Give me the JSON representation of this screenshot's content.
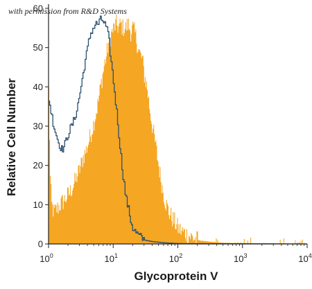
{
  "credit_text": "with permission from R&D Systems",
  "chart_data": {
    "type": "area",
    "xlabel": "Glycoprotein V",
    "ylabel": "Relative Cell Number",
    "x_scale": "log",
    "xlim": [
      1,
      10000
    ],
    "ylim": [
      0,
      60
    ],
    "x_ticks": [
      {
        "value": 1,
        "base": "10",
        "exp": "0"
      },
      {
        "value": 10,
        "base": "10",
        "exp": "1"
      },
      {
        "value": 100,
        "base": "10",
        "exp": "2"
      },
      {
        "value": 1000,
        "base": "10",
        "exp": "3"
      },
      {
        "value": 10000,
        "base": "10",
        "exp": "4"
      }
    ],
    "y_ticks": [
      0,
      10,
      20,
      30,
      40,
      50,
      60
    ],
    "grid": false,
    "legend": "none",
    "series": [
      {
        "style": "filled",
        "color": "#f5a623",
        "points": [
          [
            1.0,
            39
          ],
          [
            1.05,
            17
          ],
          [
            1.1,
            10
          ],
          [
            1.2,
            8
          ],
          [
            1.35,
            9
          ],
          [
            1.5,
            10
          ],
          [
            1.7,
            11
          ],
          [
            1.9,
            12
          ],
          [
            2.1,
            13
          ],
          [
            2.4,
            15
          ],
          [
            2.7,
            17
          ],
          [
            3.0,
            19
          ],
          [
            3.4,
            22
          ],
          [
            3.8,
            24
          ],
          [
            4.3,
            27
          ],
          [
            4.8,
            30
          ],
          [
            5.3,
            33
          ],
          [
            5.8,
            36
          ],
          [
            6.3,
            40
          ],
          [
            6.8,
            43
          ],
          [
            7.3,
            46
          ],
          [
            7.8,
            48
          ],
          [
            8.3,
            51
          ],
          [
            8.8,
            52
          ],
          [
            9.5,
            54
          ],
          [
            10.2,
            55
          ],
          [
            11.0,
            56
          ],
          [
            12.0,
            55
          ],
          [
            13.0,
            56
          ],
          [
            14.0,
            55
          ],
          [
            15.5,
            55
          ],
          [
            17.0,
            56
          ],
          [
            18.5,
            54
          ],
          [
            20.0,
            55
          ],
          [
            22.0,
            53
          ],
          [
            24.0,
            50
          ],
          [
            26.0,
            48
          ],
          [
            28.0,
            47
          ],
          [
            30.0,
            43
          ],
          [
            33.0,
            40
          ],
          [
            36.0,
            35
          ],
          [
            40.0,
            30
          ],
          [
            45.0,
            25
          ],
          [
            50.0,
            20
          ],
          [
            56.0,
            15
          ],
          [
            63.0,
            11
          ],
          [
            72.0,
            8
          ],
          [
            85.0,
            6
          ],
          [
            100.0,
            4
          ],
          [
            120.0,
            3
          ],
          [
            150.0,
            2
          ],
          [
            200.0,
            1
          ],
          [
            300.0,
            0.6
          ],
          [
            500.0,
            0.3
          ],
          [
            1000.0,
            0.2
          ],
          [
            4500.0,
            0.1
          ],
          [
            10000.0,
            0
          ]
        ]
      },
      {
        "style": "outline",
        "color": "#2b4f6e",
        "points": [
          [
            1.0,
            37
          ],
          [
            1.1,
            33
          ],
          [
            1.2,
            30
          ],
          [
            1.3,
            28
          ],
          [
            1.4,
            26
          ],
          [
            1.5,
            25
          ],
          [
            1.6,
            24
          ],
          [
            1.75,
            25
          ],
          [
            1.9,
            27
          ],
          [
            2.1,
            29
          ],
          [
            2.4,
            31
          ],
          [
            2.7,
            34
          ],
          [
            3.0,
            38
          ],
          [
            3.3,
            42
          ],
          [
            3.6,
            46
          ],
          [
            3.9,
            49
          ],
          [
            4.2,
            52
          ],
          [
            4.5,
            54
          ],
          [
            4.9,
            55
          ],
          [
            5.3,
            56
          ],
          [
            5.8,
            56
          ],
          [
            6.3,
            57
          ],
          [
            6.8,
            57
          ],
          [
            7.3,
            56
          ],
          [
            7.8,
            55
          ],
          [
            8.5,
            52
          ],
          [
            9.0,
            48
          ],
          [
            9.6,
            44
          ],
          [
            10.2,
            40
          ],
          [
            11.0,
            35
          ],
          [
            11.8,
            30
          ],
          [
            12.6,
            25
          ],
          [
            13.5,
            20
          ],
          [
            14.5,
            16
          ],
          [
            15.5,
            12
          ],
          [
            17.0,
            9
          ],
          [
            18.5,
            6
          ],
          [
            20.0,
            4
          ],
          [
            22.0,
            3
          ],
          [
            25.0,
            2
          ],
          [
            30.0,
            1
          ],
          [
            40.0,
            0.6
          ],
          [
            60.0,
            0.3
          ],
          [
            100.0,
            0.1
          ],
          [
            10000.0,
            0
          ]
        ]
      }
    ]
  }
}
